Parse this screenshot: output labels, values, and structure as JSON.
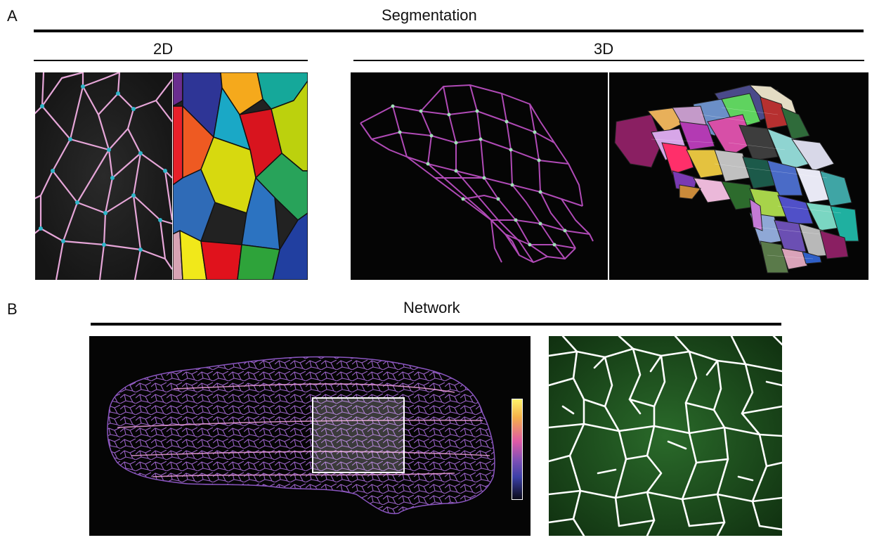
{
  "panel_a": {
    "letter": "A",
    "title": "Segmentation",
    "subtitle_2d": "2D",
    "subtitle_3d": "3D"
  },
  "panel_b": {
    "letter": "B",
    "title": "Network"
  },
  "colors": {
    "membrane_pink": "#d98bc4",
    "vertex_cyan": "#2fb6c9",
    "skeleton_purple": "#b04ab6",
    "network_green": "#1f5a1f",
    "colorbar_top": "#fff36a",
    "colorbar_mid": "#e05aa6",
    "colorbar_low": "#3b3fa6",
    "colorbar_bottom": "#0a0a18"
  }
}
